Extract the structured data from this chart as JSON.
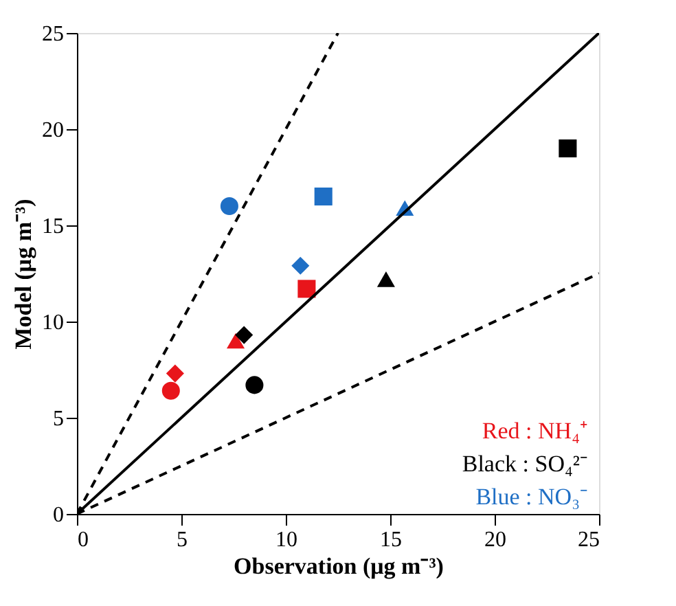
{
  "chart_data": {
    "type": "scatter",
    "xlabel": "Observation (μg m⁻³)",
    "ylabel": "Model (μg m⁻³)",
    "xlim": [
      0,
      25
    ],
    "ylim": [
      0,
      25
    ],
    "xticks": [
      0,
      5,
      10,
      15,
      20,
      25
    ],
    "yticks": [
      0,
      5,
      10,
      15,
      20,
      25
    ],
    "grid": false,
    "legend": "bottom right",
    "series": [
      {
        "name": "Red : NH₄⁺",
        "color": "#e8151b",
        "marker": [
          "circle",
          "diamond",
          "triangle",
          "square"
        ],
        "x": [
          4.5,
          4.7,
          7.6,
          11.0
        ],
        "values": [
          6.4,
          7.3,
          9.0,
          11.7
        ]
      },
      {
        "name": "Black : SO₄²⁻",
        "color": "#000000",
        "marker": [
          "circle",
          "diamond",
          "triangle",
          "square"
        ],
        "x": [
          8.5,
          8.0,
          14.8,
          23.5
        ],
        "values": [
          6.7,
          9.3,
          12.2,
          19.0
        ]
      },
      {
        "name": "Blue : NO₃⁻",
        "color": "#1f6fc5",
        "marker": [
          "circle",
          "diamond",
          "triangle",
          "square"
        ],
        "x": [
          7.3,
          10.7,
          15.7,
          11.8
        ],
        "values": [
          16.0,
          12.9,
          15.9,
          16.5
        ]
      },
      {
        "type": "line",
        "color": "#000000",
        "line_style": "solid",
        "x": [
          0,
          25
        ],
        "values": [
          0,
          25
        ]
      },
      {
        "type": "line",
        "color": "#000000",
        "line_style": "dashed",
        "x": [
          0,
          12.5
        ],
        "values": [
          0,
          25
        ]
      },
      {
        "type": "line",
        "color": "#000000",
        "line_style": "dashed",
        "x": [
          0,
          25
        ],
        "values": [
          0,
          12.5
        ]
      }
    ]
  }
}
